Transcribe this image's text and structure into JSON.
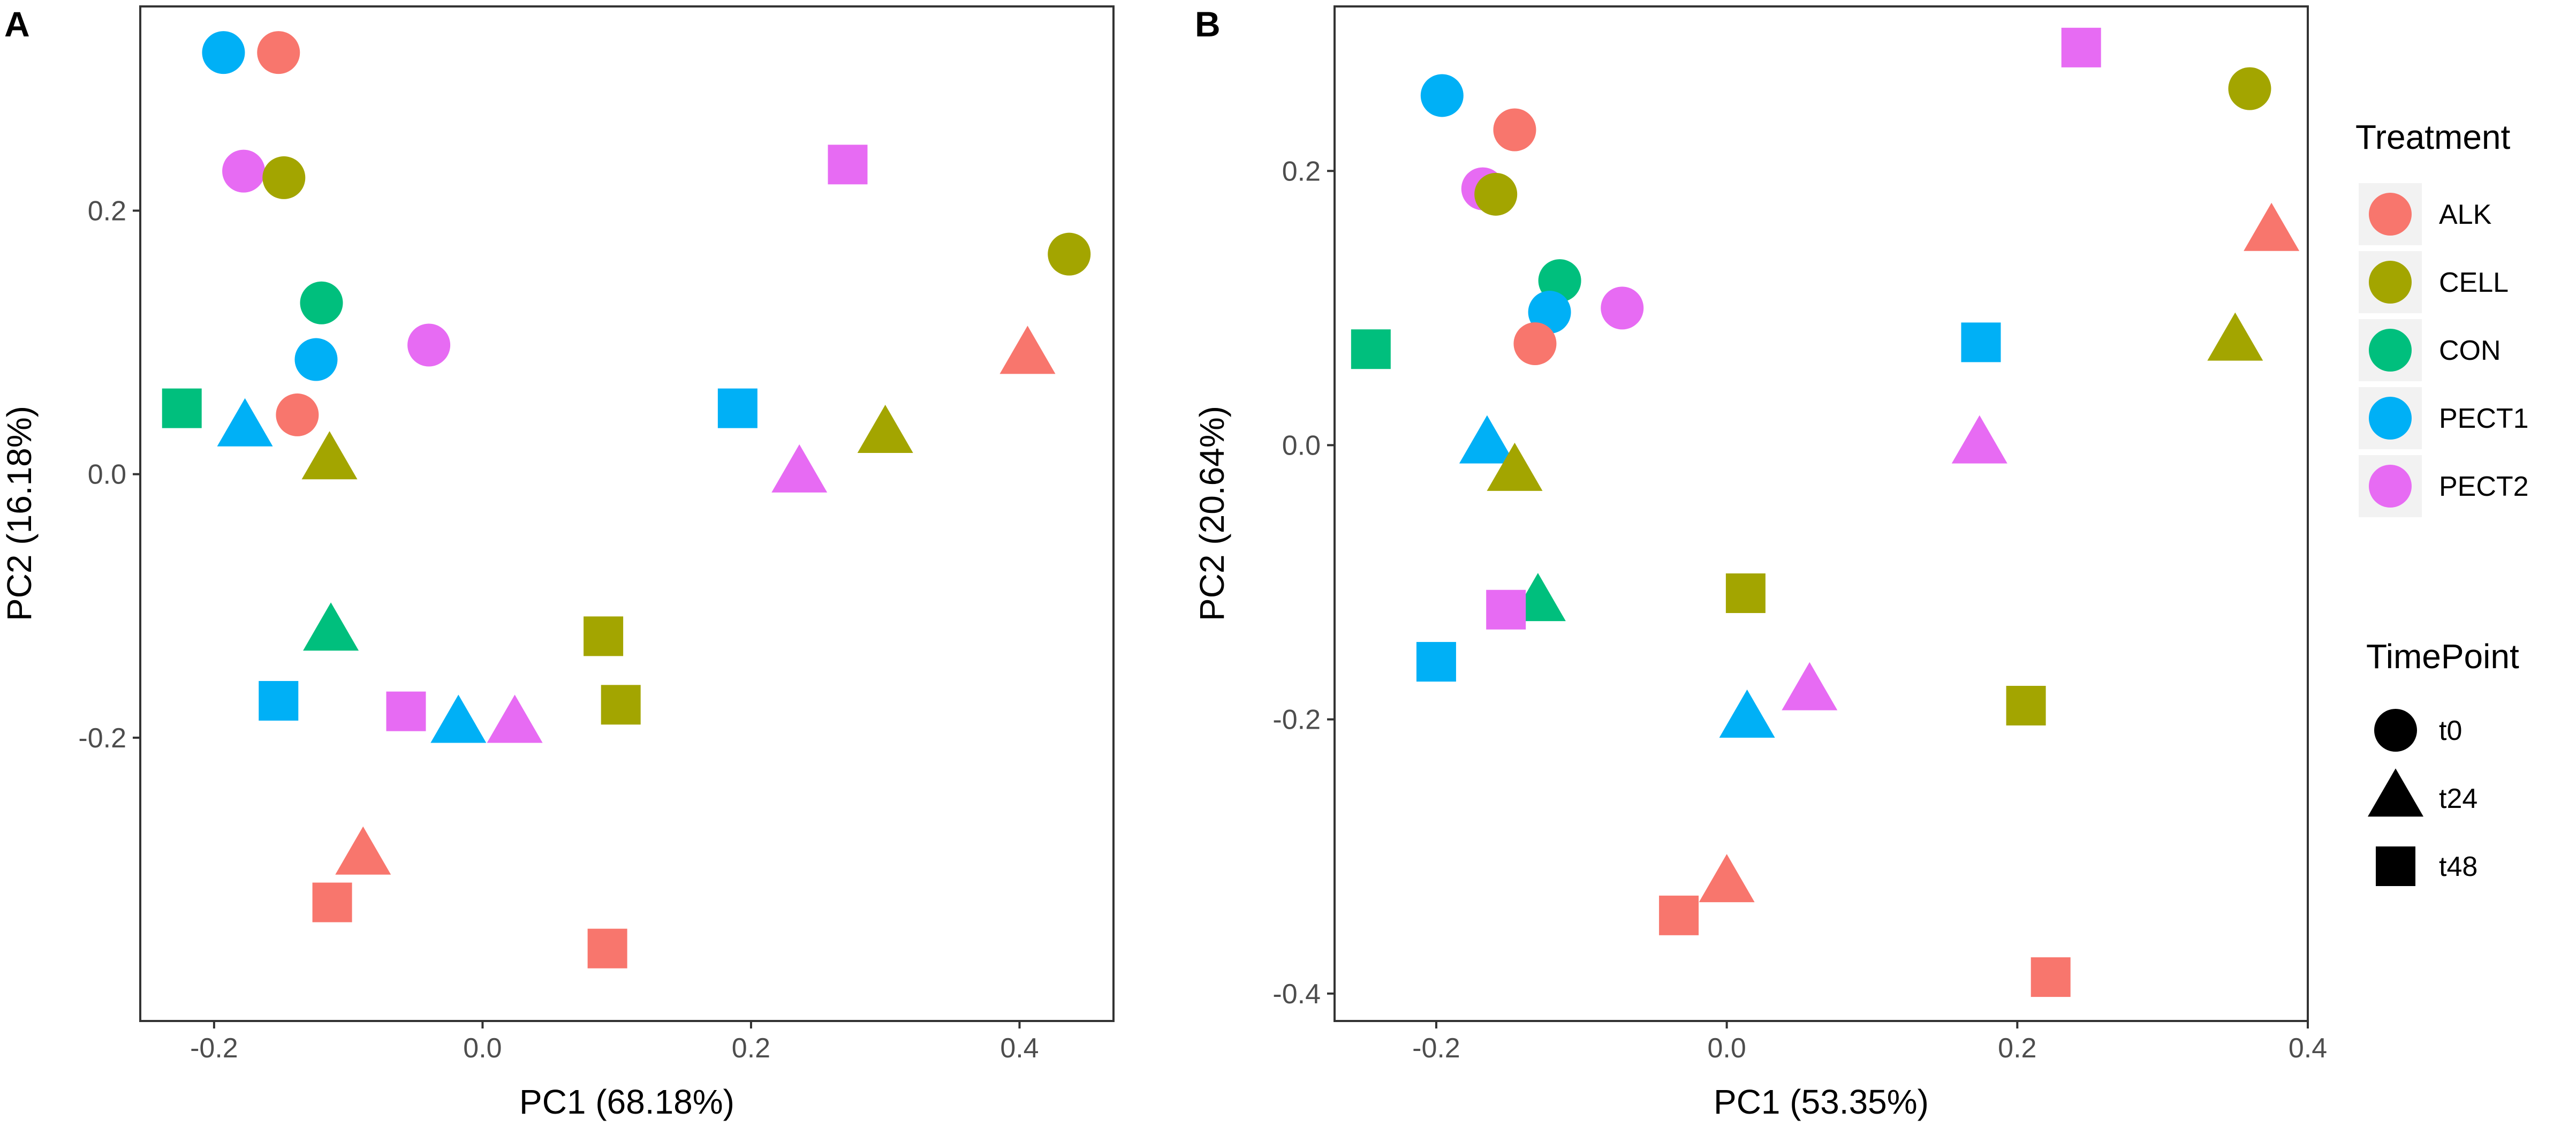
{
  "chart_data": [
    {
      "type": "scatter",
      "panel_label": "A",
      "xlabel": "PC1 (68.18%)",
      "ylabel": "PC2 (16.18%)",
      "xlim": [
        -0.255,
        0.47
      ],
      "ylim": [
        -0.415,
        0.355
      ],
      "xticks": [
        -0.2,
        0.0,
        0.2,
        0.4
      ],
      "xtick_labels": [
        "-0.2",
        "0.0",
        "0.2",
        "0.4"
      ],
      "yticks": [
        -0.2,
        0.0,
        0.2
      ],
      "ytick_labels": [
        "-0.2",
        "0.0",
        "0.2"
      ],
      "grid": false,
      "points": [
        {
          "treatment": "PECT1",
          "timepoint": "t0",
          "x": -0.193,
          "y": 0.32
        },
        {
          "treatment": "ALK",
          "timepoint": "t0",
          "x": -0.152,
          "y": 0.32
        },
        {
          "treatment": "PECT2",
          "timepoint": "t0",
          "x": -0.178,
          "y": 0.23
        },
        {
          "treatment": "CELL",
          "timepoint": "t0",
          "x": -0.148,
          "y": 0.225
        },
        {
          "treatment": "CON",
          "timepoint": "t0",
          "x": -0.12,
          "y": 0.13
        },
        {
          "treatment": "PECT1",
          "timepoint": "t0",
          "x": -0.124,
          "y": 0.087
        },
        {
          "treatment": "PECT2",
          "timepoint": "t0",
          "x": -0.04,
          "y": 0.098
        },
        {
          "treatment": "ALK",
          "timepoint": "t0",
          "x": -0.138,
          "y": 0.045
        },
        {
          "treatment": "CELL",
          "timepoint": "t0",
          "x": 0.437,
          "y": 0.167
        },
        {
          "treatment": "CON",
          "timepoint": "t48",
          "x": -0.224,
          "y": 0.05
        },
        {
          "treatment": "PECT1",
          "timepoint": "t24",
          "x": -0.177,
          "y": 0.035
        },
        {
          "treatment": "CELL",
          "timepoint": "t24",
          "x": -0.114,
          "y": 0.01
        },
        {
          "treatment": "PECT2",
          "timepoint": "t48",
          "x": 0.272,
          "y": 0.235
        },
        {
          "treatment": "ALK",
          "timepoint": "t24",
          "x": 0.406,
          "y": 0.09
        },
        {
          "treatment": "PECT1",
          "timepoint": "t48",
          "x": 0.19,
          "y": 0.05
        },
        {
          "treatment": "CELL",
          "timepoint": "t24",
          "x": 0.3,
          "y": 0.03
        },
        {
          "treatment": "PECT2",
          "timepoint": "t24",
          "x": 0.236,
          "y": 0.0
        },
        {
          "treatment": "CON",
          "timepoint": "t24",
          "x": -0.113,
          "y": -0.12
        },
        {
          "treatment": "CELL",
          "timepoint": "t48",
          "x": 0.09,
          "y": -0.123
        },
        {
          "treatment": "CELL",
          "timepoint": "t48",
          "x": 0.103,
          "y": -0.175
        },
        {
          "treatment": "PECT1",
          "timepoint": "t48",
          "x": -0.152,
          "y": -0.172
        },
        {
          "treatment": "PECT2",
          "timepoint": "t48",
          "x": -0.057,
          "y": -0.18
        },
        {
          "treatment": "PECT1",
          "timepoint": "t24",
          "x": -0.018,
          "y": -0.19
        },
        {
          "treatment": "PECT2",
          "timepoint": "t24",
          "x": 0.024,
          "y": -0.19
        },
        {
          "treatment": "ALK",
          "timepoint": "t24",
          "x": -0.089,
          "y": -0.29
        },
        {
          "treatment": "ALK",
          "timepoint": "t48",
          "x": -0.112,
          "y": -0.325
        },
        {
          "treatment": "ALK",
          "timepoint": "t48",
          "x": 0.093,
          "y": -0.36
        }
      ]
    },
    {
      "type": "scatter",
      "panel_label": "B",
      "xlabel": "PC1 (53.35%)",
      "ylabel": "PC2 (20.64%)",
      "xlim": [
        -0.27,
        0.4
      ],
      "ylim": [
        -0.42,
        0.32
      ],
      "xticks": [
        -0.2,
        0.0,
        0.2,
        0.4
      ],
      "xtick_labels": [
        "-0.2",
        "0.0",
        "0.2",
        "0.4"
      ],
      "yticks": [
        -0.4,
        -0.2,
        0.0,
        0.2
      ],
      "ytick_labels": [
        "-0.4",
        "-0.2",
        "0.0",
        "0.2"
      ],
      "grid": false,
      "points": [
        {
          "treatment": "PECT1",
          "timepoint": "t0",
          "x": -0.196,
          "y": 0.255
        },
        {
          "treatment": "ALK",
          "timepoint": "t0",
          "x": -0.146,
          "y": 0.23
        },
        {
          "treatment": "PECT2",
          "timepoint": "t0",
          "x": -0.168,
          "y": 0.187
        },
        {
          "treatment": "CELL",
          "timepoint": "t0",
          "x": -0.159,
          "y": 0.183
        },
        {
          "treatment": "CON",
          "timepoint": "t0",
          "x": -0.115,
          "y": 0.12
        },
        {
          "treatment": "PECT1",
          "timepoint": "t0",
          "x": -0.122,
          "y": 0.097
        },
        {
          "treatment": "PECT2",
          "timepoint": "t0",
          "x": -0.072,
          "y": 0.1
        },
        {
          "treatment": "ALK",
          "timepoint": "t0",
          "x": -0.132,
          "y": 0.074
        },
        {
          "treatment": "CELL",
          "timepoint": "t0",
          "x": 0.36,
          "y": 0.26
        },
        {
          "treatment": "PECT2",
          "timepoint": "t48",
          "x": 0.244,
          "y": 0.29
        },
        {
          "treatment": "ALK",
          "timepoint": "t24",
          "x": 0.375,
          "y": 0.155
        },
        {
          "treatment": "CELL",
          "timepoint": "t24",
          "x": 0.35,
          "y": 0.075
        },
        {
          "treatment": "PECT1",
          "timepoint": "t48",
          "x": 0.175,
          "y": 0.075
        },
        {
          "treatment": "PECT2",
          "timepoint": "t24",
          "x": 0.174,
          "y": 0.0
        },
        {
          "treatment": "CON",
          "timepoint": "t48",
          "x": -0.245,
          "y": 0.07
        },
        {
          "treatment": "PECT1",
          "timepoint": "t24",
          "x": -0.165,
          "y": 0.0
        },
        {
          "treatment": "CELL",
          "timepoint": "t24",
          "x": -0.146,
          "y": -0.02
        },
        {
          "treatment": "CELL",
          "timepoint": "t48",
          "x": 0.013,
          "y": -0.108
        },
        {
          "treatment": "CON",
          "timepoint": "t24",
          "x": -0.13,
          "y": -0.115
        },
        {
          "treatment": "PECT2",
          "timepoint": "t48",
          "x": -0.152,
          "y": -0.12
        },
        {
          "treatment": "PECT1",
          "timepoint": "t48",
          "x": -0.2,
          "y": -0.158
        },
        {
          "treatment": "PECT2",
          "timepoint": "t24",
          "x": 0.057,
          "y": -0.18
        },
        {
          "treatment": "PECT1",
          "timepoint": "t24",
          "x": 0.014,
          "y": -0.2
        },
        {
          "treatment": "CELL",
          "timepoint": "t48",
          "x": 0.206,
          "y": -0.19
        },
        {
          "treatment": "ALK",
          "timepoint": "t24",
          "x": 0.0,
          "y": -0.32
        },
        {
          "treatment": "ALK",
          "timepoint": "t48",
          "x": -0.033,
          "y": -0.343
        },
        {
          "treatment": "ALK",
          "timepoint": "t48",
          "x": 0.223,
          "y": -0.388
        }
      ]
    }
  ],
  "legend": {
    "treatment_title": "Treatment",
    "treatments": [
      {
        "name": "ALK",
        "color": "#F8766D"
      },
      {
        "name": "CELL",
        "color": "#A3A500"
      },
      {
        "name": "CON",
        "color": "#00BF7D"
      },
      {
        "name": "PECT1",
        "color": "#00B0F6"
      },
      {
        "name": "PECT2",
        "color": "#E76BF3"
      }
    ],
    "timepoint_title": "TimePoint",
    "timepoints": [
      {
        "name": "t0",
        "shape": "circle"
      },
      {
        "name": "t24",
        "shape": "triangle"
      },
      {
        "name": "t48",
        "shape": "square"
      }
    ]
  }
}
